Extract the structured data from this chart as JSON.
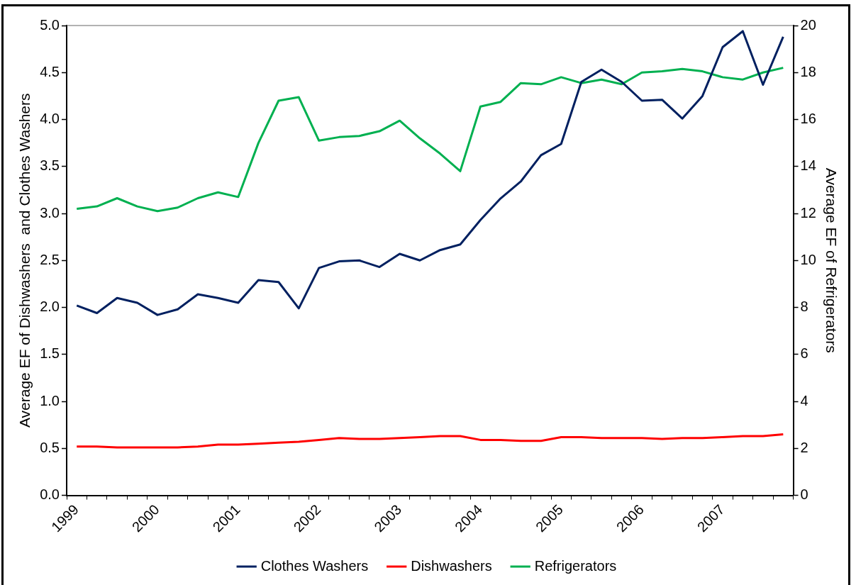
{
  "chart_data": {
    "type": "line",
    "ylabel": "Average EF of Dishwashers  and Clothes Washers",
    "y2label": "Average EF of Refrigerators",
    "categories": [
      "1999",
      null,
      null,
      null,
      "2000",
      null,
      null,
      null,
      "2001",
      null,
      null,
      null,
      "2002",
      null,
      null,
      null,
      "2003",
      null,
      null,
      null,
      "2004",
      null,
      null,
      null,
      "2005",
      null,
      null,
      null,
      "2006",
      null,
      null,
      null,
      "2007",
      null,
      null,
      null
    ],
    "series": [
      {
        "name": "Clothes Washers",
        "color": "#002060",
        "values": [
          2.02,
          1.94,
          2.1,
          2.05,
          1.92,
          1.98,
          2.14,
          2.1,
          2.05,
          2.29,
          2.27,
          1.99,
          2.42,
          2.49,
          2.5,
          2.43,
          2.57,
          2.5,
          2.61,
          2.67,
          2.93,
          3.16,
          3.34,
          3.62,
          3.74,
          4.4,
          4.53,
          4.4,
          4.2,
          4.21,
          4.01,
          4.25,
          4.77,
          4.94,
          4.37,
          4.88
        ]
      },
      {
        "name": "Dishwashers",
        "color": "#ff0000",
        "values": [
          0.52,
          0.52,
          0.51,
          0.51,
          0.51,
          0.51,
          0.52,
          0.54,
          0.54,
          0.55,
          0.56,
          0.57,
          0.59,
          0.61,
          0.6,
          0.6,
          0.61,
          0.62,
          0.63,
          0.63,
          0.59,
          0.59,
          0.58,
          0.58,
          0.62,
          0.62,
          0.61,
          0.61,
          0.61,
          0.6,
          0.61,
          0.61,
          0.62,
          0.63,
          0.63,
          0.65
        ]
      },
      {
        "name": "Refrigerators",
        "color": "#00b050",
        "axis": "y2",
        "values": [
          12.2,
          12.3,
          12.65,
          12.3,
          12.1,
          12.25,
          12.65,
          12.9,
          12.7,
          15.0,
          16.8,
          16.95,
          15.1,
          15.25,
          15.3,
          15.5,
          15.95,
          15.2,
          14.55,
          13.8,
          16.55,
          16.75,
          17.55,
          17.5,
          17.8,
          17.55,
          17.7,
          17.5,
          18.0,
          18.05,
          18.15,
          18.05,
          17.8,
          17.7,
          18.0,
          18.2
        ]
      }
    ],
    "ylim": [
      0,
      5
    ],
    "yticks": [
      {
        "value": 0,
        "label": "0.0"
      },
      {
        "value": 0.5,
        "label": "0.5"
      },
      {
        "value": 1,
        "label": "1.0"
      },
      {
        "value": 1.5,
        "label": "1.5"
      },
      {
        "value": 2,
        "label": "2.0"
      },
      {
        "value": 2.5,
        "label": "2.5"
      },
      {
        "value": 3,
        "label": "3.0"
      },
      {
        "value": 3.5,
        "label": "3.5"
      },
      {
        "value": 4,
        "label": "4.0"
      },
      {
        "value": 4.5,
        "label": "4.5"
      },
      {
        "value": 5,
        "label": "5.0"
      }
    ],
    "y2lim": [
      0,
      20
    ],
    "y2ticks": [
      0,
      2,
      4,
      6,
      8,
      10,
      12,
      14,
      16,
      18,
      20
    ],
    "legend": "bottom",
    "grid": false,
    "marker": "none",
    "line_style": "solid"
  }
}
